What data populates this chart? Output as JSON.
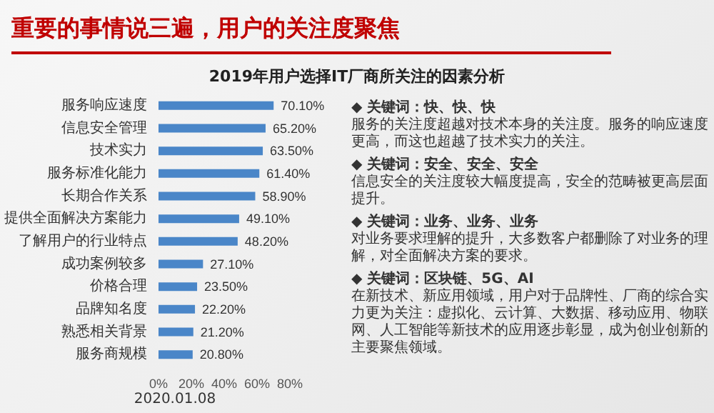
{
  "chart_data": {
    "type": "bar",
    "orientation": "horizontal",
    "title": "重要的事情说三遍，用户的关注度聚焦",
    "subtitle": "2019年用户选择IT厂商所关注的因素分析",
    "categories": [
      "服务响应速度",
      "信息安全管理",
      "技术实力",
      "服务标准化能力",
      "长期合作关系",
      "提供全面解决方案能力",
      "了解用户的行业特点",
      "成功案例较多",
      "价格合理",
      "品牌知名度",
      "熟悉相关背景",
      "服务商规模"
    ],
    "values": [
      70.1,
      65.2,
      63.5,
      61.4,
      58.9,
      49.1,
      48.2,
      27.1,
      23.5,
      22.2,
      21.2,
      20.8
    ],
    "value_labels": [
      "70.10%",
      "65.20%",
      "63.50%",
      "61.40%",
      "58.90%",
      "49.10%",
      "48.20%",
      "27.10%",
      "23.50%",
      "22.20%",
      "21.20%",
      "20.80%"
    ],
    "color": "#4a86c8",
    "xlim": [
      0,
      80
    ],
    "xticks": [
      {
        "value": 0,
        "label": "0%"
      },
      {
        "value": 20,
        "label": "20%"
      },
      {
        "value": 40,
        "label": "40%"
      },
      {
        "value": 60,
        "label": "60%"
      },
      {
        "value": 80,
        "label": "80%"
      }
    ],
    "grid": false,
    "annotations": [
      "◆ 关键词：快、快、快",
      "服务的关注度超越对技术本身的关注度。服务的响应速度更高，而这也超越了技术实力的关注。",
      "◆ 关键词：安全、安全、安全",
      "信息安全的关注度较大幅度提高，安全的范畴被更高层面提升。",
      "◆ 关键词：业务、业务、业务",
      "对业务要求理解的提升，大多数客户都删除了对业务的理解，对全面解决方案的要求。",
      "◆ 关键词：区块链、5G、AI",
      "在新技术、新应用领域，用户对于品牌性、厂商的综合实力更为关注：虚拟化、云计算、大数据、移动应用、物联网、人工智能等新技术的应用逐步彰显，成为创业创新的主要聚焦领域。",
      "2020.01.08"
    ]
  }
}
